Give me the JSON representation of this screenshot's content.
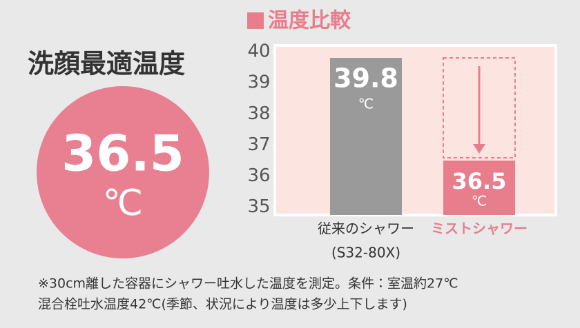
{
  "headline": "洗顔最適温度",
  "highlight": {
    "value": 36.5,
    "unit": "℃"
  },
  "chart_data": {
    "type": "bar",
    "title": "温度比較",
    "categories": [
      "従来のシャワー",
      "ミストシャワー"
    ],
    "model": "(S32-80X)",
    "values": [
      39.8,
      36.5
    ],
    "unit": "℃",
    "colors": [
      "#9a9a9a",
      "#e87d8c"
    ],
    "ylim": [
      34.75,
      40.2
    ],
    "yticks": [
      35,
      36,
      37,
      38,
      39,
      40
    ]
  },
  "footnote": [
    "※30cm離した容器にシャワー吐水した温度を測定。条件：室温約27℃",
    "混合栓吐水温度42℃(季節、状況により温度は多少上下します)"
  ]
}
